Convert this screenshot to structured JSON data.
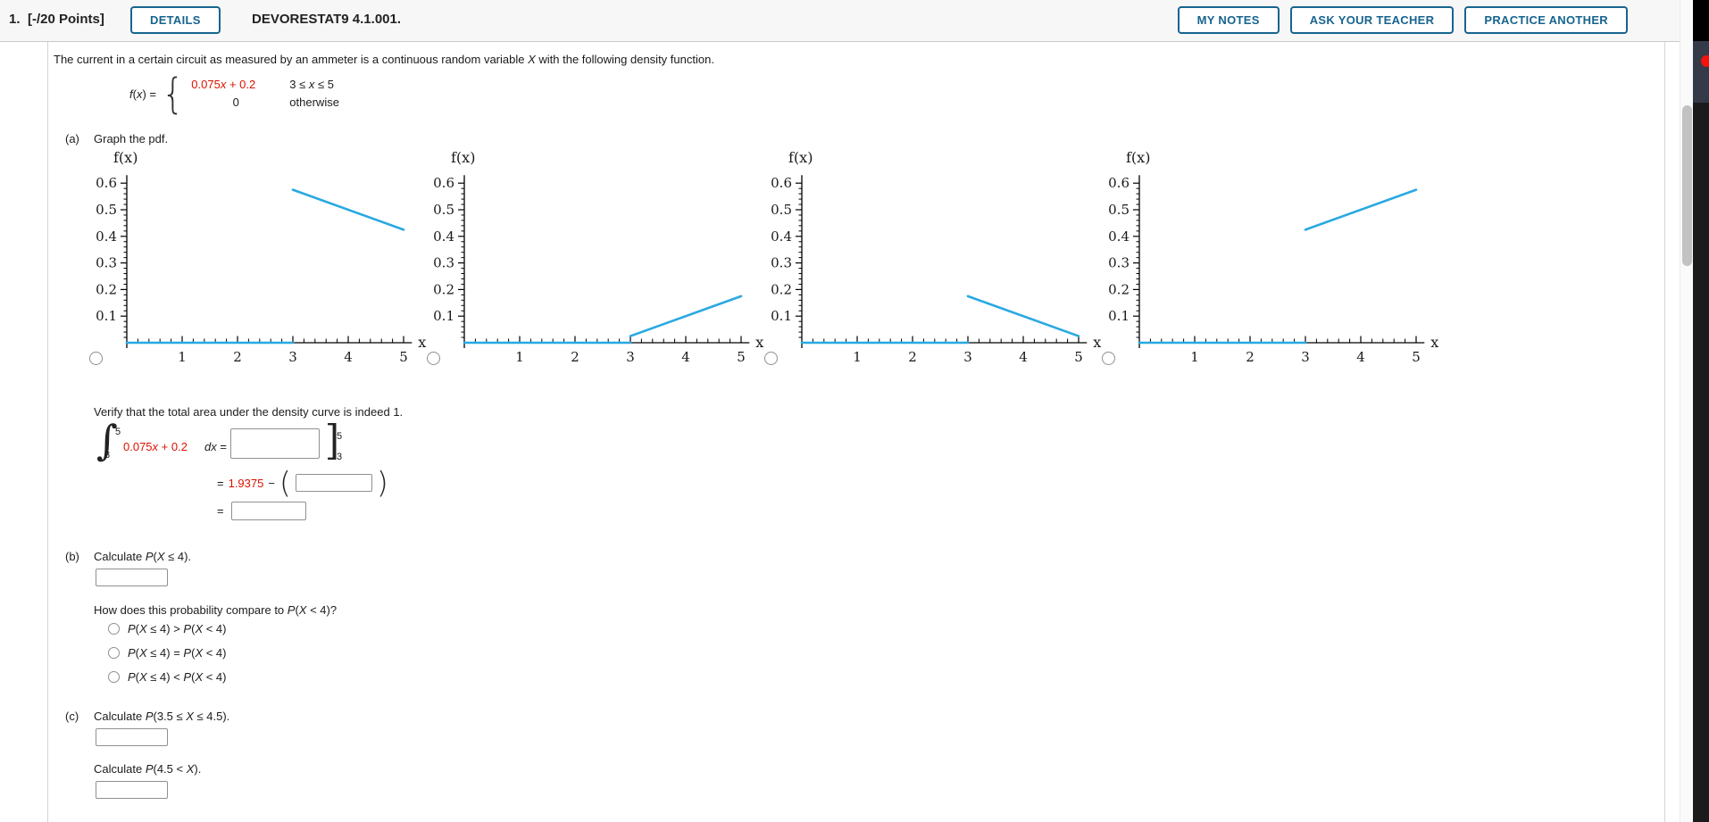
{
  "header": {
    "question_number": "1.",
    "points": "[-/20 Points]",
    "details": "DETAILS",
    "assignment": "DEVORESTAT9 4.1.001.",
    "my_notes": "MY NOTES",
    "ask_teacher": "ASK YOUR TEACHER",
    "practice": "PRACTICE ANOTHER"
  },
  "problem": {
    "intro_before": "The current in a certain circuit as measured by an ammeter is a continuous random variable ",
    "intro_var": "X",
    "intro_after": " with the following density function.",
    "fx": "f(x) = ",
    "piece1_expr": "0.075x + 0.2",
    "piece1_cond": "3 ≤ x ≤ 5",
    "piece2_expr": "0",
    "piece2_cond": "otherwise"
  },
  "part_a": {
    "label": "(a)",
    "prompt": "Graph the pdf.",
    "verify": "Verify that the total area under the density curve is indeed 1.",
    "integral_upper": "5",
    "integral_lower": "3",
    "integrand": "0.075x + 0.2",
    "dx": "dx =",
    "bracket_upper": "5",
    "bracket_lower": "3",
    "eq2_sign": "=",
    "eq2_value": "1.9375",
    "eq2_minus": "−",
    "eq2_open": "(",
    "eq2_close": ")",
    "eq3_sign": "="
  },
  "part_b": {
    "label": "(b)",
    "prompt_prefix": "Calculate ",
    "prompt_math": "P(X ≤ 4).",
    "compare_prefix": "How does this probability compare to ",
    "compare_math": "P(X < 4)?",
    "options": [
      "P(X ≤ 4) > P(X < 4)",
      "P(X ≤ 4) = P(X < 4)",
      "P(X ≤ 4) < P(X < 4)"
    ]
  },
  "part_c": {
    "label": "(c)",
    "prompt1_prefix": "Calculate ",
    "prompt1_math": "P(3.5 ≤ X ≤ 4.5).",
    "prompt2_prefix": "Calculate ",
    "prompt2_math": "P(4.5 < X)."
  },
  "inputs": {
    "antiderivative_value": "",
    "lower_eval_value": "",
    "total_area_value": "",
    "b_probability": "",
    "c_probability_1": "",
    "c_probability_2": ""
  },
  "chart_data": [
    {
      "type": "line",
      "option": "A",
      "ylabel": "f(x)",
      "xlabel": "x",
      "xticks": [
        1,
        2,
        3,
        4,
        5
      ],
      "yticks": [
        0.1,
        0.2,
        0.3,
        0.4,
        0.5,
        0.6
      ],
      "xlim": [
        0,
        5.15
      ],
      "ylim": [
        0,
        0.63
      ],
      "x_minor_step": 0.2,
      "y_minor_step": 0.02,
      "grid": false,
      "line_color": "#29a9e1",
      "segments": [
        [
          [
            0,
            0
          ],
          [
            3,
            0
          ]
        ],
        [
          [
            3,
            0.575
          ],
          [
            5,
            0.425
          ]
        ]
      ]
    },
    {
      "type": "line",
      "option": "B",
      "ylabel": "f(x)",
      "xlabel": "x",
      "xticks": [
        1,
        2,
        3,
        4,
        5
      ],
      "yticks": [
        0.1,
        0.2,
        0.3,
        0.4,
        0.5,
        0.6
      ],
      "xlim": [
        0,
        5.15
      ],
      "ylim": [
        0,
        0.63
      ],
      "x_minor_step": 0.2,
      "y_minor_step": 0.02,
      "grid": false,
      "line_color": "#29a9e1",
      "segments": [
        [
          [
            0,
            0
          ],
          [
            3,
            0
          ]
        ],
        [
          [
            3,
            0.025
          ],
          [
            5,
            0.175
          ]
        ]
      ]
    },
    {
      "type": "line",
      "option": "C",
      "ylabel": "f(x)",
      "xlabel": "x",
      "xticks": [
        1,
        2,
        3,
        4,
        5
      ],
      "yticks": [
        0.1,
        0.2,
        0.3,
        0.4,
        0.5,
        0.6
      ],
      "xlim": [
        0,
        5.15
      ],
      "ylim": [
        0,
        0.63
      ],
      "x_minor_step": 0.2,
      "y_minor_step": 0.02,
      "grid": false,
      "line_color": "#29a9e1",
      "segments": [
        [
          [
            0,
            0
          ],
          [
            3,
            0
          ]
        ],
        [
          [
            3,
            0.175
          ],
          [
            5,
            0.025
          ]
        ]
      ]
    },
    {
      "type": "line",
      "option": "D",
      "ylabel": "f(x)",
      "xlabel": "x",
      "xticks": [
        1,
        2,
        3,
        4,
        5
      ],
      "yticks": [
        0.1,
        0.2,
        0.3,
        0.4,
        0.5,
        0.6
      ],
      "xlim": [
        0,
        5.15
      ],
      "ylim": [
        0,
        0.63
      ],
      "x_minor_step": 0.2,
      "y_minor_step": 0.02,
      "grid": false,
      "line_color": "#29a9e1",
      "segments": [
        [
          [
            0,
            0
          ],
          [
            3,
            0
          ]
        ],
        [
          [
            3,
            0.425
          ],
          [
            5,
            0.575
          ]
        ]
      ]
    }
  ],
  "colors": {
    "accent_blue": "#17648f",
    "plot_line_blue": "#29a9e1",
    "highlight_red": "#dd1100"
  }
}
